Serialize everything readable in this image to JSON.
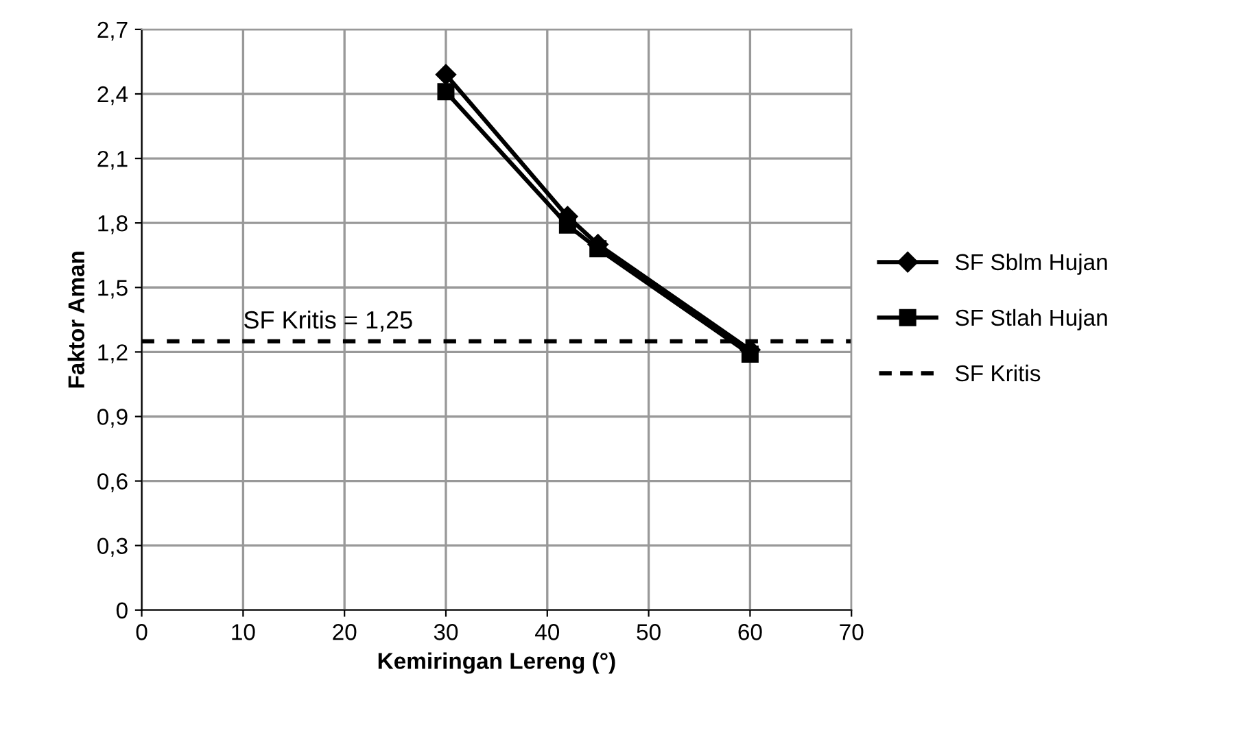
{
  "chart_data": {
    "type": "line",
    "xlabel": "Kemiringan Lereng (°)",
    "ylabel": "Faktor Aman",
    "x": [
      30,
      42,
      45,
      60
    ],
    "series": [
      {
        "name": "SF Sblm Hujan",
        "color": "#000000",
        "marker": "diamond",
        "values": [
          2.49,
          1.83,
          1.7,
          1.21
        ]
      },
      {
        "name": "SF Stlah Hujan",
        "color": "#000000",
        "marker": "square",
        "values": [
          2.41,
          1.79,
          1.68,
          1.19
        ]
      }
    ],
    "ref_lines": [
      {
        "axis": "y",
        "value": 1.25,
        "label": "SF Kritis",
        "color": "#000000",
        "line_style": "dashed"
      }
    ],
    "annotations": [
      {
        "text": "SF Kritis = 1,25",
        "x": 10,
        "y": 1.25
      }
    ],
    "xlim": [
      0,
      70
    ],
    "xticks": [
      0,
      10,
      20,
      30,
      40,
      50,
      60,
      70
    ],
    "ylim": [
      0,
      2.7
    ],
    "yticks": [
      0,
      {
        "value": 0.3,
        "label": "0,3"
      },
      {
        "value": 0.6,
        "label": "0,6"
      },
      {
        "value": 0.9,
        "label": "0,9"
      },
      {
        "value": 1.2,
        "label": "1,2"
      },
      {
        "value": 1.5,
        "label": "1,5"
      },
      {
        "value": 1.8,
        "label": "1,8"
      },
      {
        "value": 2.1,
        "label": "2,1"
      },
      {
        "value": 2.4,
        "label": "2,4"
      },
      {
        "value": 2.7,
        "label": "2,7"
      }
    ],
    "grid": true,
    "legend": "right",
    "line_style": "solid"
  }
}
